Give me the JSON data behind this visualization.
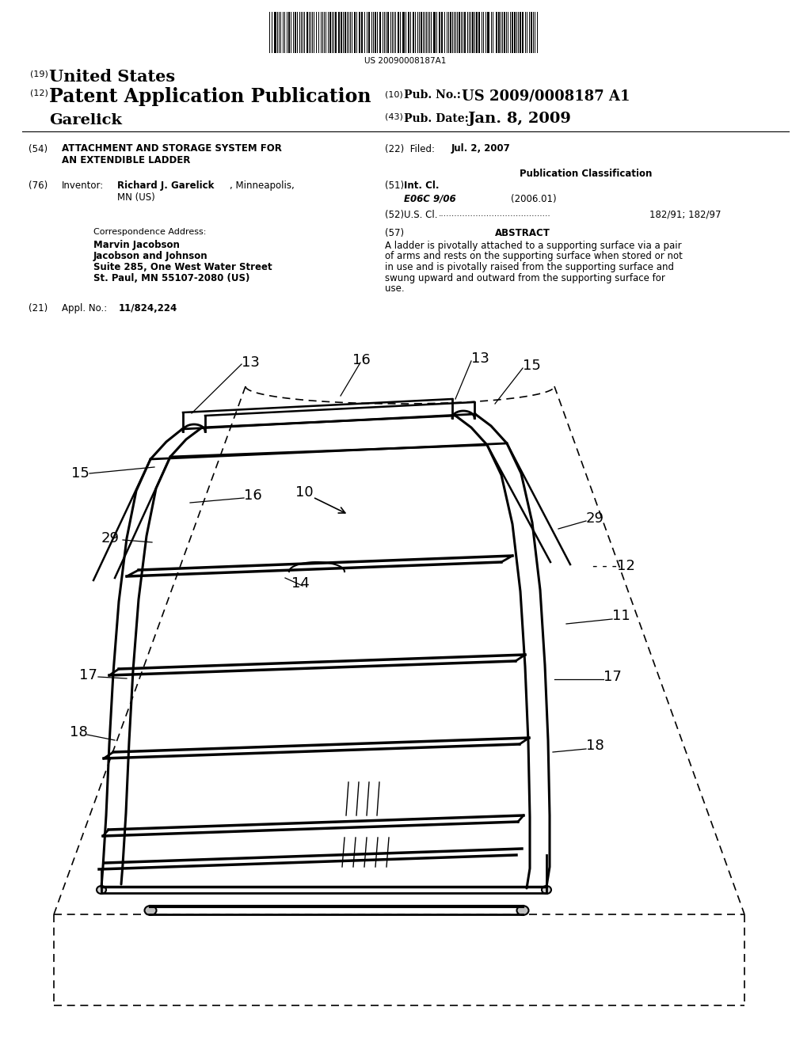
{
  "background_color": "#ffffff",
  "barcode_text": "US 20090008187A1",
  "header_19_text": "United States",
  "header_12_text": "Patent Application Publication",
  "header_name": "Garelick",
  "pub_no_label": "(10) Pub. No.:",
  "pub_no_value": "US 2009/0008187 A1",
  "pub_date_label": "(43) Pub. Date:",
  "pub_date_value": "Jan. 8, 2009",
  "f54_label": "(54)",
  "f54_line1": "ATTACHMENT AND STORAGE SYSTEM FOR",
  "f54_line2": "AN EXTENDIBLE LADDER",
  "f22_label": "(22) Filed:",
  "f22_value": "Jul. 2, 2007",
  "pub_class": "Publication Classification",
  "f76_label": "(76) Inventor:",
  "f76_bold": "Richard J. Garelick",
  "f76_rest": ", Minneapolis,",
  "f76_line2": "MN (US)",
  "f51_label": "(51) Int. Cl.",
  "f51_class": "E06C 9/06",
  "f51_year": "(2006.01)",
  "f52_label": "(52) U.S. Cl.",
  "f52_dots": "........................................",
  "f52_value": "182/91; 182/97",
  "corr_head": "Correspondence Address:",
  "corr_l1": "Marvin Jacobson",
  "corr_l2": "Jacobson and Johnson",
  "corr_l3": "Suite 285, One West Water Street",
  "corr_l4": "St. Paul, MN 55107-2080 (US)",
  "f21_label": "(21) Appl. No.:",
  "f21_value": "11/824,224",
  "f57_label": "(57)",
  "abstract_title": "ABSTRACT",
  "abstract": "A ladder is pivotally attached to a supporting surface via a pair of arms and rests on the supporting surface when stored or not in use and is pivotally raised from the supporting surface and swung upward and outward from the supporting surface for use."
}
